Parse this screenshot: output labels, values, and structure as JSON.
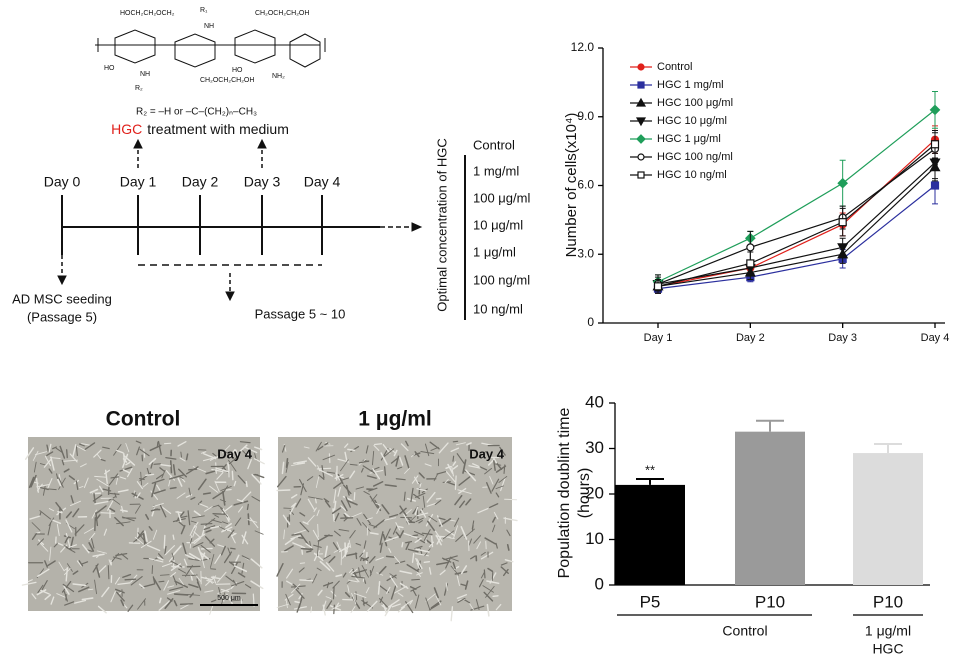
{
  "diagram": {
    "structure_labels": [
      "HOCH₂CH₂OCH₂",
      "R₁",
      "NH",
      "CH₂OCH₂CH₂OH",
      "HO",
      "NH",
      "R₂",
      "CH₂OCH₂CH₂OH",
      "HO",
      "NH₂"
    ],
    "structure_formula": "R₂ = –H or –C–(CH₂)ₙ–CH₃",
    "treatment_note": [
      "HGC",
      "treatment with medium"
    ],
    "days": [
      {
        "label": "Day 0",
        "color": "#111111"
      },
      {
        "label": "Day 1",
        "color": "#e0201b"
      },
      {
        "label": "Day 2",
        "color": "#111111"
      },
      {
        "label": "Day 3",
        "color": "#e0201b"
      },
      {
        "label": "Day 4",
        "color": "#111111"
      }
    ],
    "seeding": [
      "AD MSC seeding",
      "(Passage 5)"
    ],
    "passage": "Passage 5 ~ 10",
    "concentration_title": "Optimal concentration of HGC",
    "concentrations": [
      "Control",
      "1 mg/ml",
      "100 μg/ml",
      "10 μg/ml",
      "1 μg/ml",
      "100 ng/ml",
      "10 ng/ml"
    ]
  },
  "micrographs": {
    "titles": [
      "Control",
      "1 μg/ml"
    ],
    "day_labels": [
      "Day 4",
      "Day 4"
    ],
    "scale_bar": "500 μm"
  },
  "chart_data": [
    {
      "type": "line",
      "ylabel": "Number of cells(x10⁴)",
      "categories": [
        "Day 1",
        "Day 2",
        "Day 3",
        "Day 4"
      ],
      "ylim": [
        0,
        12
      ],
      "yticks": [
        0,
        {
          "value": 3,
          "label": "3.0"
        },
        {
          "value": 6,
          "label": "6.0"
        },
        {
          "value": 9,
          "label": "9.0"
        },
        {
          "value": 12,
          "label": "12.0"
        }
      ],
      "legend": "top-left",
      "series": [
        {
          "name": "Control",
          "color": "#e0201b",
          "marker": "circle",
          "values": [
            1.6,
            2.4,
            4.3,
            8.0
          ],
          "errors": [
            0.3,
            0.3,
            0.5,
            0.6
          ]
        },
        {
          "name": "HGC 1 mg/ml",
          "color": "#2b2f9e",
          "marker": "square",
          "values": [
            1.5,
            2.0,
            2.8,
            6.0
          ],
          "errors": [
            0.2,
            0.2,
            0.4,
            0.8
          ]
        },
        {
          "name": "HGC 100 μg/ml",
          "color": "#111111",
          "marker": "triangle",
          "values": [
            1.6,
            2.2,
            3.0,
            6.8
          ],
          "errors": [
            0.2,
            0.3,
            0.4,
            0.6
          ]
        },
        {
          "name": "HGC 10 μg/ml",
          "color": "#111111",
          "marker": "triangle-down",
          "values": [
            1.7,
            2.4,
            3.3,
            7.0
          ],
          "errors": [
            0.3,
            0.3,
            0.4,
            0.7
          ]
        },
        {
          "name": "HGC 1 μg/ml",
          "color": "#1f9e5a",
          "marker": "diamond",
          "values": [
            1.8,
            3.7,
            6.1,
            9.3
          ],
          "errors": [
            0.3,
            0.3,
            1.0,
            0.8
          ]
        },
        {
          "name": "HGC 100 ng/ml",
          "color": "#111111",
          "marker": "circle-open",
          "values": [
            1.7,
            3.3,
            4.6,
            7.6
          ],
          "errors": [
            0.4,
            0.7,
            0.5,
            0.7
          ]
        },
        {
          "name": "HGC 10 ng/ml",
          "color": "#111111",
          "marker": "square-open",
          "values": [
            1.6,
            2.6,
            4.4,
            7.8
          ],
          "errors": [
            0.3,
            0.5,
            0.6,
            0.6
          ]
        }
      ]
    },
    {
      "type": "bar",
      "ylabel": [
        "Population doublint time",
        "(hours)"
      ],
      "categories": [
        "P5",
        "P10",
        "P10"
      ],
      "values": [
        22,
        33.7,
        29
      ],
      "errors": [
        1.3,
        2.4,
        2.0
      ],
      "colors": [
        "#000000",
        "#9a9a9a",
        "#dcdcdc"
      ],
      "annotations": [
        "**"
      ],
      "group_labels": [
        "Control",
        "1 μg/ml",
        "HGC"
      ],
      "ylim": [
        0,
        40
      ],
      "yticks": [
        0,
        10,
        20,
        30,
        40
      ]
    }
  ]
}
